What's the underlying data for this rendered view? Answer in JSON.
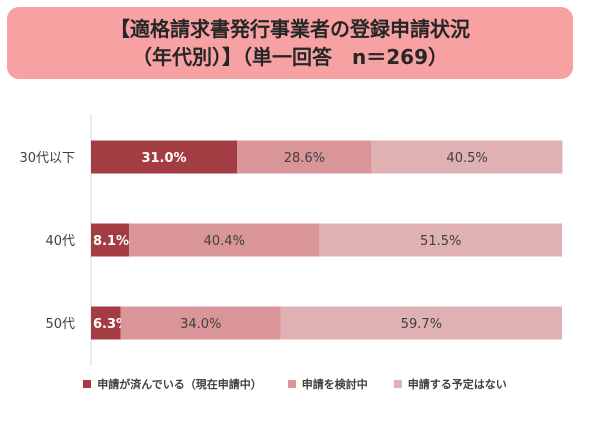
{
  "title": {
    "line1": "【適格請求書発行事業者の登録申請状況",
    "line2": "（年代別）】（単一回答　n＝269）"
  },
  "colors": {
    "title_background": "#f7a1a3",
    "series": [
      "#a33d43",
      "#d99597",
      "#e0b1b2"
    ],
    "label_text": [
      "#ffffff",
      "#404040",
      "#404040"
    ]
  },
  "chart_data": {
    "type": "bar",
    "orientation": "horizontal",
    "stacked": true,
    "percent_stacked": true,
    "categories": [
      "30代以下",
      "40代",
      "50代"
    ],
    "series": [
      {
        "name": "申請が済んでいる（現在申請中）",
        "values": [
          31.0,
          8.1,
          6.3
        ],
        "labels": [
          "31.0%",
          "8.1%",
          "6.3%"
        ]
      },
      {
        "name": "申請を検討中",
        "values": [
          28.6,
          40.4,
          34.0
        ],
        "labels": [
          "28.6%",
          "40.4%",
          "34.0%"
        ]
      },
      {
        "name": "申請する予定はない",
        "values": [
          40.5,
          51.5,
          59.7
        ],
        "labels": [
          "40.5%",
          "51.5%",
          "59.7%"
        ]
      }
    ],
    "xlim": [
      0,
      100
    ],
    "grid": false,
    "legend_position": "bottom"
  }
}
